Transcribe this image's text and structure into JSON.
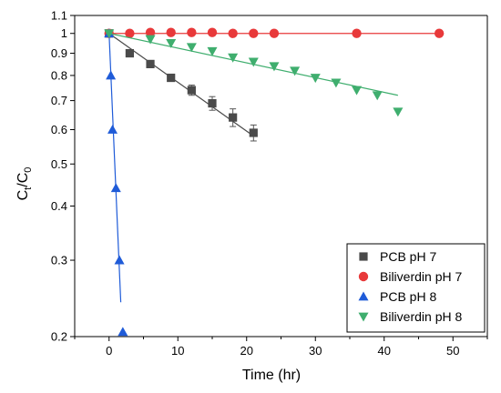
{
  "chart_data": {
    "type": "scatter",
    "title": "",
    "xlabel": "Time (hr)",
    "ylabel": "C",
    "ylabel_sub1": "t",
    "ylabel_mid": "/C",
    "ylabel_sub2": "0",
    "xlim": [
      -5,
      55
    ],
    "ylim": [
      0.2,
      1.1
    ],
    "yscale": "log",
    "xticks": [
      0,
      10,
      20,
      30,
      40,
      50
    ],
    "yticks": [
      0.2,
      0.3,
      0.4,
      0.5,
      0.6,
      0.7,
      0.8,
      0.9,
      1,
      1.1
    ],
    "ytick_labels": [
      "0.2",
      "0.3",
      "0.4",
      "0.5",
      "0.6",
      "0.7",
      "0.8",
      "0.9",
      "1",
      "1.1"
    ],
    "grid": false,
    "legend_position": "bottom-right",
    "series": [
      {
        "name": "PCB pH 7",
        "marker": "square",
        "color": "#4a4a4a",
        "x": [
          0,
          3,
          6,
          9,
          12,
          15,
          18,
          21
        ],
        "y": [
          1.0,
          0.9,
          0.85,
          0.79,
          0.74,
          0.69,
          0.64,
          0.59
        ],
        "err": [
          0,
          0.01,
          0.01,
          0.01,
          0.02,
          0.025,
          0.03,
          0.025
        ],
        "fit": {
          "x": [
            0,
            21
          ],
          "y": [
            1.0,
            0.58
          ]
        }
      },
      {
        "name": "Biliverdin pH 7",
        "marker": "circle",
        "color": "#e8393a",
        "x": [
          0,
          3,
          6,
          9,
          12,
          15,
          18,
          21,
          24,
          36,
          48
        ],
        "y": [
          1.0,
          1.0,
          1.005,
          1.005,
          1.005,
          1.005,
          1.0,
          1.0,
          1.0,
          1.0,
          1.0
        ],
        "fit": {
          "x": [
            0,
            48
          ],
          "y": [
            1.0,
            1.0
          ]
        }
      },
      {
        "name": "PCB pH 8",
        "marker": "triangle-up",
        "color": "#1f5bd8",
        "x": [
          0,
          0.25,
          0.5,
          1,
          1.5,
          2
        ],
        "y": [
          1.0,
          0.8,
          0.6,
          0.44,
          0.3,
          0.205
        ],
        "fit": {
          "x": [
            0,
            1.7
          ],
          "y": [
            1.0,
            0.24
          ]
        }
      },
      {
        "name": "Biliverdin pH 8",
        "marker": "triangle-down",
        "color": "#3fae6e",
        "x": [
          0,
          6,
          9,
          12,
          15,
          18,
          21,
          24,
          27,
          30,
          33,
          36,
          39,
          42
        ],
        "y": [
          1.0,
          0.97,
          0.95,
          0.93,
          0.91,
          0.88,
          0.86,
          0.84,
          0.82,
          0.79,
          0.77,
          0.74,
          0.72,
          0.66
        ],
        "fit": {
          "x": [
            0,
            42
          ],
          "y": [
            1.0,
            0.72
          ]
        }
      }
    ]
  }
}
